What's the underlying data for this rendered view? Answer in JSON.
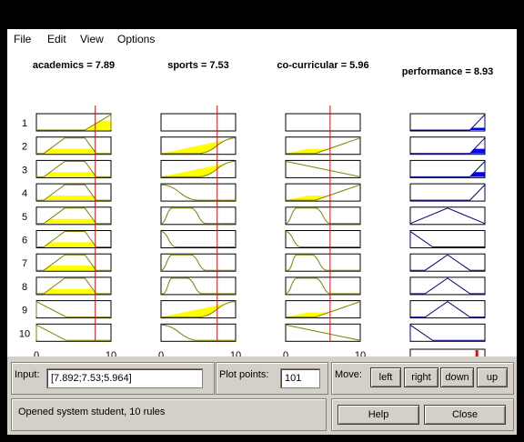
{
  "menu": [
    "File",
    "Edit",
    "View",
    "Options"
  ],
  "inputs": [
    {
      "label": "academics = 7.89",
      "value": 7.89,
      "rows": [
        {
          "mf": [
            6.5,
            10,
            10
          ],
          "fill": 0.6
        },
        {
          "mf": [
            1,
            3.8,
            6.5,
            8
          ],
          "fill": 0.3
        },
        {
          "mf": [
            1,
            3.8,
            6.5,
            8
          ],
          "fill": 0.3
        },
        {
          "mf": [
            1,
            3.8,
            6.5,
            8
          ],
          "fill": 0.3
        },
        {
          "mf": [
            1,
            3.8,
            6.5,
            8
          ],
          "fill": 0.3
        },
        {
          "mf": [
            1,
            3.8,
            6.5,
            8
          ],
          "fill": 0.3
        },
        {
          "mf": [
            1,
            3.8,
            6.5,
            8
          ],
          "fill": 0.3
        },
        {
          "mf": [
            1,
            3.8,
            6.5,
            8
          ],
          "fill": 0.3
        },
        {
          "mf": [
            0,
            0,
            4
          ],
          "fill": 0
        },
        {
          "mf": [
            0,
            0,
            4
          ],
          "fill": 0
        }
      ]
    },
    {
      "label": "sports = 7.53",
      "value": 7.53,
      "rows": [
        {
          "none": true
        },
        {
          "mf": [
            5,
            10,
            10
          ],
          "fill": 1,
          "shape": "s"
        },
        {
          "mf": [
            5,
            10,
            10
          ],
          "fill": 1,
          "shape": "s"
        },
        {
          "mf": [
            0,
            5
          ],
          "fill": 0,
          "shape": "z"
        },
        {
          "mf": [
            0,
            1.5,
            4,
            6
          ],
          "fill": 0,
          "shape": "pi"
        },
        {
          "mf": [
            0,
            2
          ],
          "fill": 0,
          "shape": "z"
        },
        {
          "mf": [
            0,
            1.5,
            4,
            6
          ],
          "fill": 0,
          "shape": "pi"
        },
        {
          "mf": [
            0,
            1.5
          ],
          "fill": 0,
          "shape": "pi2"
        },
        {
          "mf": [
            5,
            10,
            10
          ],
          "fill": 1,
          "shape": "s"
        },
        {
          "mf": [
            0,
            5
          ],
          "fill": 0,
          "shape": "z"
        }
      ]
    },
    {
      "label": "co-curricular = 5.96",
      "value": 5.96,
      "rows": [
        {
          "none": true
        },
        {
          "mf": [
            4,
            10,
            10
          ],
          "fill": 0.3,
          "shape": "ramp"
        },
        {
          "mf": [
            0,
            0,
            10
          ],
          "fill": 0.6,
          "shape": "down"
        },
        {
          "mf": [
            4,
            10,
            10
          ],
          "fill": 0.3,
          "shape": "ramp"
        },
        {
          "mf": [
            0,
            1.5,
            4,
            6
          ],
          "fill": 0,
          "shape": "pi"
        },
        {
          "mf": [
            0,
            2
          ],
          "fill": 0,
          "shape": "z"
        },
        {
          "mf": [
            0,
            1.5
          ],
          "fill": 0,
          "shape": "pi2"
        },
        {
          "mf": [
            0,
            1.5,
            4,
            6
          ],
          "fill": 0,
          "shape": "pi"
        },
        {
          "mf": [
            4,
            10,
            10
          ],
          "fill": 0.3,
          "shape": "ramp"
        },
        {
          "mf": [
            0,
            0,
            10
          ],
          "fill": 0.6,
          "shape": "down"
        }
      ]
    }
  ],
  "output": {
    "label": "performance = 8.93",
    "value": 8.93,
    "rows": [
      {
        "mf": [
          8,
          10,
          10
        ],
        "fill": 0.15
      },
      {
        "mf": [
          8,
          10,
          10
        ],
        "fill": 0.3
      },
      {
        "mf": [
          8,
          10,
          10
        ],
        "fill": 0.3
      },
      {
        "mf": [
          8,
          10,
          10
        ],
        "fill": 0
      },
      {
        "mf": [
          0,
          5,
          10
        ],
        "fill": 0
      },
      {
        "mf": [
          0,
          0,
          3
        ],
        "fill": 0
      },
      {
        "mf": [
          2,
          5,
          8
        ],
        "fill": 0
      },
      {
        "mf": [
          2,
          5,
          8
        ],
        "fill": 0
      },
      {
        "mf": [
          2,
          5,
          8
        ],
        "fill": 0
      },
      {
        "mf": [
          0,
          0,
          3
        ],
        "fill": 0
      }
    ]
  },
  "rule_numbers": [
    "1",
    "2",
    "3",
    "4",
    "5",
    "6",
    "7",
    "8",
    "9",
    "10"
  ],
  "axis_min": "0",
  "axis_max": "10",
  "input_label": "Input:",
  "input_value": "[7.892;7.53;5.964]",
  "plot_points_label": "Plot points:",
  "plot_points_value": "101",
  "move_label": "Move:",
  "buttons": {
    "left": "left",
    "right": "right",
    "down": "down",
    "up": "up",
    "help": "Help",
    "close": "Close"
  },
  "status": "Opened system student, 10 rules",
  "colors": {
    "fill": "#ffff00",
    "mf_line": "#808000",
    "red": "#ff0000",
    "out_line": "#000080",
    "out_fill": "#0000ff",
    "blue_text": "#0000ff"
  }
}
